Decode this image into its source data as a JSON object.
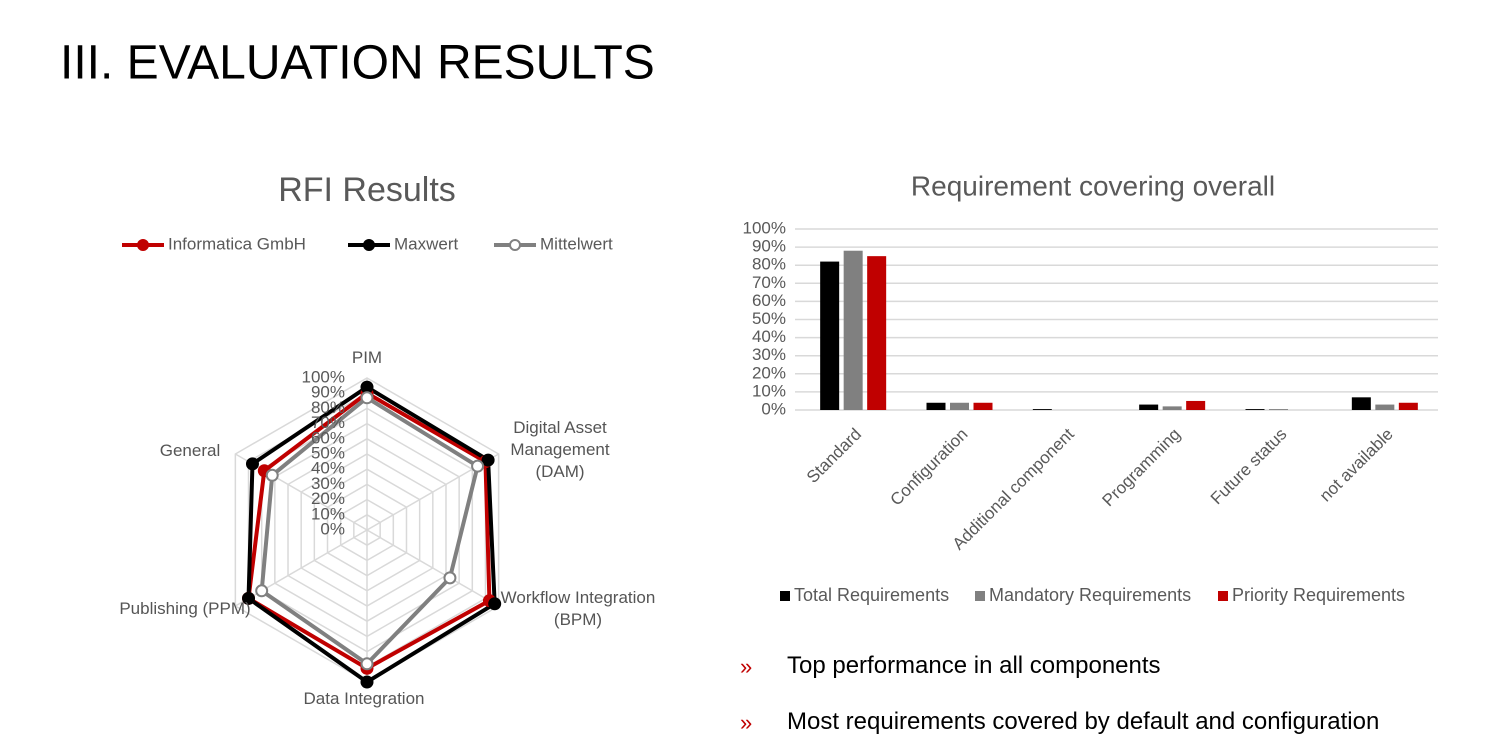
{
  "header": {
    "title": "III. EVALUATION RESULTS"
  },
  "chart_data": [
    {
      "type": "radar",
      "title": "RFI Results",
      "categories": [
        "PIM",
        "Digital Asset Management (DAM)",
        "Workflow Integration (BPM)",
        "Data Integration",
        "Publishing (PPM)",
        "General"
      ],
      "series": [
        {
          "name": "Informatica GmbH",
          "color": "#c00000",
          "marker_fill": "#c00000",
          "values": [
            90,
            90,
            93,
            91,
            90,
            78
          ]
        },
        {
          "name": "Maxwert",
          "color": "#000000",
          "marker_fill": "#000000",
          "values": [
            94,
            92,
            97,
            100,
            90,
            87
          ]
        },
        {
          "name": "Mittelwert",
          "color": "#808080",
          "marker_fill": "#ffffff",
          "values": [
            87,
            84,
            63,
            88,
            80,
            72
          ]
        }
      ],
      "rlim": [
        0,
        100
      ],
      "rticks": [
        {
          "value": 0,
          "label": "0%"
        },
        {
          "value": 10,
          "label": "10%"
        },
        {
          "value": 20,
          "label": "20%"
        },
        {
          "value": 30,
          "label": "30%"
        },
        {
          "value": 40,
          "label": "40%"
        },
        {
          "value": 50,
          "label": "50%"
        },
        {
          "value": 60,
          "label": "60%"
        },
        {
          "value": 70,
          "label": "70%"
        },
        {
          "value": 80,
          "label": "80%"
        },
        {
          "value": 90,
          "label": "90%"
        },
        {
          "value": 100,
          "label": "100%"
        }
      ],
      "grid": true,
      "legend": "top"
    },
    {
      "type": "bar",
      "title": "Requirement covering overall",
      "categories": [
        "Standard",
        "Configuration",
        "Additional component",
        "Programming",
        "Future status",
        "not available"
      ],
      "series": [
        {
          "name": "Total Requirements",
          "color": "#000000",
          "values": [
            82,
            4,
            0.5,
            3,
            0.5,
            7
          ]
        },
        {
          "name": "Mandatory Requirements",
          "color": "#808080",
          "values": [
            88,
            4,
            0,
            2,
            0.5,
            3
          ]
        },
        {
          "name": "Priority Requirements",
          "color": "#c00000",
          "values": [
            85,
            4,
            0,
            5,
            0,
            4
          ]
        }
      ],
      "ylim": [
        0,
        100
      ],
      "yticks": [
        {
          "value": 0,
          "label": "0%"
        },
        {
          "value": 10,
          "label": "10%"
        },
        {
          "value": 20,
          "label": "20%"
        },
        {
          "value": 30,
          "label": "30%"
        },
        {
          "value": 40,
          "label": "40%"
        },
        {
          "value": 50,
          "label": "50%"
        },
        {
          "value": 60,
          "label": "60%"
        },
        {
          "value": 70,
          "label": "70%"
        },
        {
          "value": 80,
          "label": "80%"
        },
        {
          "value": 90,
          "label": "90%"
        },
        {
          "value": 100,
          "label": "100%"
        }
      ],
      "grid": true,
      "legend": "bottom"
    }
  ],
  "bullets": {
    "marker": "»",
    "items": [
      "Top performance in all components",
      "Most requirements covered by default and configuration"
    ]
  }
}
